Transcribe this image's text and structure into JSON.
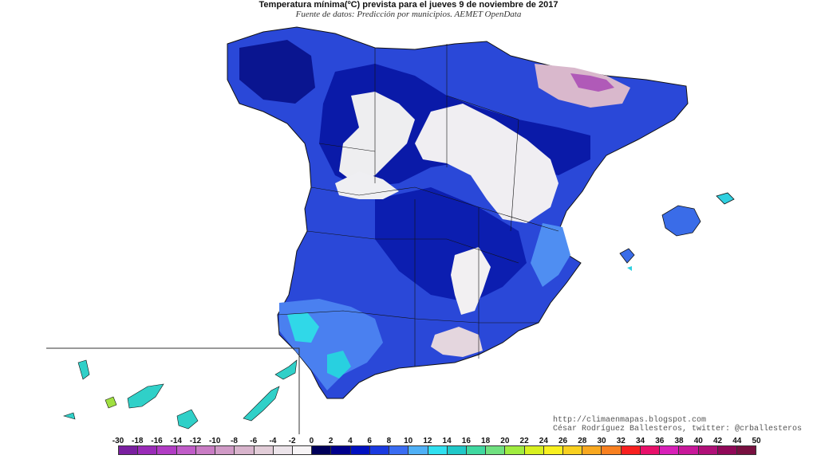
{
  "title": "Temperatura mínima(ºC) prevista para el jueves 9 de noviembre de 2017",
  "subtitle": "Fuente de datos: Predicción por municipios. AEMET OpenData",
  "credits": {
    "url": "http://climaenmapas.blogspot.com",
    "author": "César Rodríguez Ballesteros, twitter: @crballesteros"
  },
  "legend": {
    "labels": [
      "-30",
      "-18",
      "-16",
      "-14",
      "-12",
      "-10",
      "-8",
      "-6",
      "-4",
      "-2",
      "0",
      "2",
      "4",
      "6",
      "8",
      "10",
      "12",
      "14",
      "16",
      "18",
      "20",
      "22",
      "24",
      "26",
      "28",
      "30",
      "32",
      "34",
      "36",
      "38",
      "40",
      "42",
      "44",
      "50"
    ],
    "colors": [
      "#7a1fa0",
      "#9a2bb8",
      "#b13cc4",
      "#c05cc8",
      "#c97cc4",
      "#d09ac6",
      "#d8b4cc",
      "#e2cdd8",
      "#ece4ea",
      "#f7f4f6",
      "#00005a",
      "#00008c",
      "#0010c0",
      "#1a3ae0",
      "#3a6cf2",
      "#4fb0f6",
      "#30e0f0",
      "#20c8c8",
      "#40d8a0",
      "#70e080",
      "#a0ec40",
      "#d8f020",
      "#f8f020",
      "#f8d020",
      "#f8a820",
      "#f88020",
      "#f82020",
      "#e8106a",
      "#d820b8",
      "#c8189a",
      "#b01078",
      "#900858",
      "#781040"
    ]
  },
  "map": {
    "regions": [
      "Peninsula",
      "Islas Baleares",
      "Islas Canarias"
    ],
    "dominant_range_peninsula": "0 to 6",
    "cold_areas": "-4 to 0 on high plateaus and Pyrenees"
  }
}
